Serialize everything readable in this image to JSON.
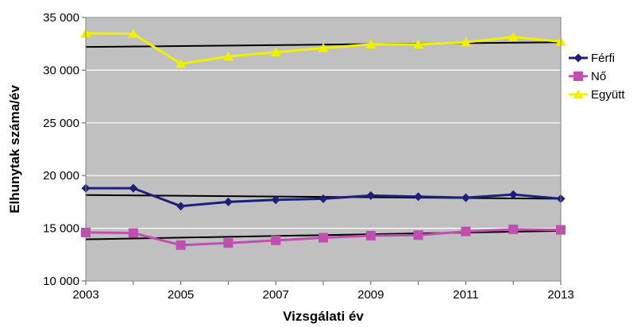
{
  "chart_data": {
    "type": "line",
    "title": "",
    "xlabel": "Vizsgálati év",
    "ylabel": "Elhunytak száma/év",
    "x": [
      2003,
      2004,
      2005,
      2006,
      2007,
      2008,
      2009,
      2010,
      2011,
      2012,
      2013
    ],
    "xlim": [
      2003,
      2013
    ],
    "ylim": [
      10000,
      35000
    ],
    "x_ticks": [
      2003,
      2005,
      2007,
      2009,
      2011,
      2013
    ],
    "x_tick_labels": [
      "2003",
      "2005",
      "2007",
      "2009",
      "2011",
      "2013"
    ],
    "y_ticks": [
      10000,
      15000,
      20000,
      25000,
      30000,
      35000
    ],
    "y_tick_labels": [
      "10 000",
      "15 000",
      "20 000",
      "25 000",
      "30 000",
      "35 000"
    ],
    "grid": "horizontal",
    "plot_background": "#c0c0c0",
    "legend_position": "right",
    "series": [
      {
        "name": "Férfi",
        "color": "#1f1f7a",
        "marker": "diamond",
        "values": [
          18800,
          18800,
          17100,
          17500,
          17700,
          17800,
          18100,
          18000,
          17900,
          18200,
          17800
        ],
        "trend": [
          18150,
          17800
        ]
      },
      {
        "name": "Nő",
        "color": "#c04fb0",
        "marker": "square",
        "values": [
          14600,
          14550,
          13400,
          13600,
          13850,
          14100,
          14300,
          14350,
          14700,
          14900,
          14850
        ],
        "trend": [
          13950,
          14750
        ]
      },
      {
        "name": "Együtt",
        "color": "#f0f000",
        "marker": "triangle",
        "values": [
          33500,
          33450,
          30600,
          31300,
          31700,
          32100,
          32450,
          32450,
          32650,
          33150,
          32700
        ],
        "trend": [
          32200,
          32650
        ]
      }
    ]
  }
}
